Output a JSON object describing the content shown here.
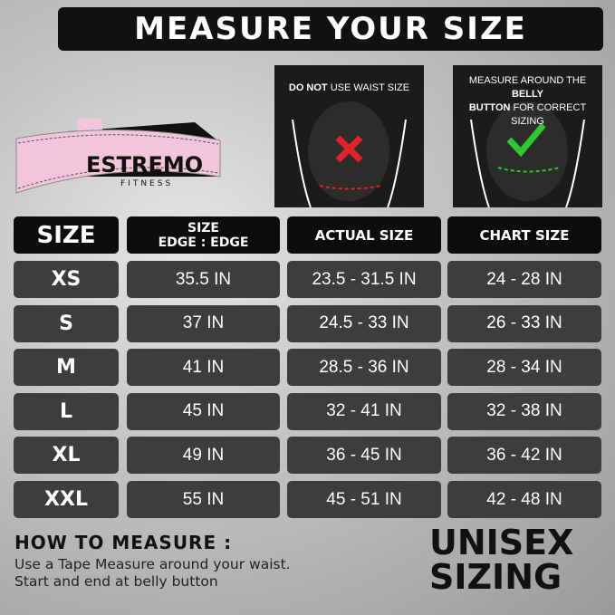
{
  "title": "MEASURE YOUR SIZE",
  "belt": {
    "brand": "ESTREMO",
    "sub": "FITNESS",
    "color": "#f2c6d8"
  },
  "panels": [
    {
      "bold": "DO NOT",
      "text": " USE WAIST SIZE",
      "mark": "x-icon",
      "mark_color": "#e0222a"
    },
    {
      "text1": "MEASURE AROUND THE ",
      "bold1": "BELLY",
      "bold2": "BUTTON",
      "text2": " FOR CORRECT SIZING",
      "mark": "check-icon",
      "mark_color": "#2fc62f"
    }
  ],
  "table": {
    "headers": [
      "SIZE",
      "SIZE",
      "EDGE : EDGE",
      "ACTUAL SIZE",
      "CHART SIZE"
    ],
    "rows": [
      {
        "size": "XS",
        "edge": "35.5 IN",
        "actual": "23.5 - 31.5 IN",
        "chart": "24 - 28 IN"
      },
      {
        "size": "S",
        "edge": "37 IN",
        "actual": "24.5 - 33 IN",
        "chart": "26 - 33 IN"
      },
      {
        "size": "M",
        "edge": "41 IN",
        "actual": "28.5 - 36 IN",
        "chart": "28 - 34 IN"
      },
      {
        "size": "L",
        "edge": "45 IN",
        "actual": "32 - 41 IN",
        "chart": "32 - 38 IN"
      },
      {
        "size": "XL",
        "edge": "49 IN",
        "actual": "36 - 45 IN",
        "chart": "36 - 42 IN"
      },
      {
        "size": "XXL",
        "edge": "55 IN",
        "actual": "45 - 51 IN",
        "chart": "42 - 48 IN"
      }
    ]
  },
  "how": {
    "title": "HOW TO MEASURE :",
    "line1": "Use a Tape Measure around your waist.",
    "line2": "Start and end at belly button"
  },
  "unisex": {
    "line1": "UNISEX",
    "line2": "SIZING"
  }
}
